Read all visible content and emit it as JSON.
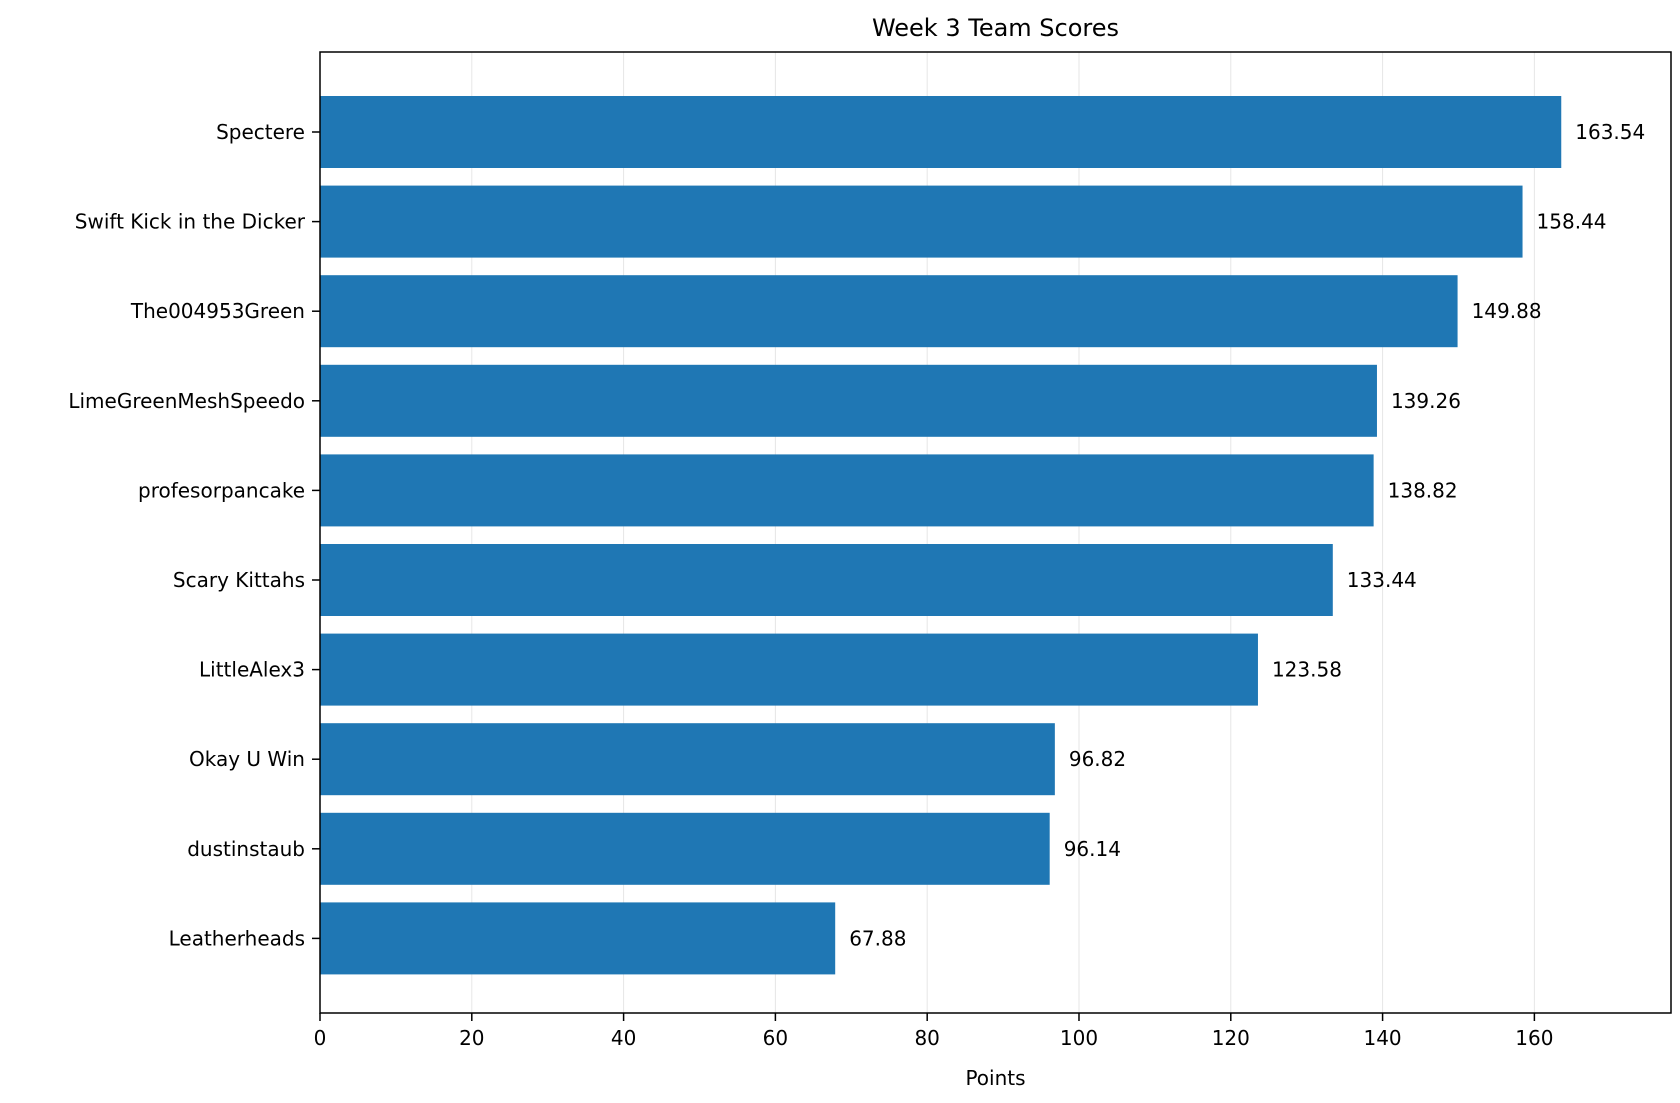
{
  "chart_data": {
    "type": "bar",
    "orientation": "horizontal",
    "title": "Week 3 Team Scores",
    "xlabel": "Points",
    "ylabel": "",
    "categories": [
      "Spectere",
      "Swift Kick in the Dicker",
      "The004953Green",
      "LimeGreenMeshSpeedo",
      "profesorpancake",
      "Scary Kittahs",
      "LittleAlex3",
      "Okay U Win",
      "dustinstaub",
      "Leatherheads"
    ],
    "values": [
      163.54,
      158.44,
      149.88,
      139.26,
      138.82,
      133.44,
      123.58,
      96.82,
      96.14,
      67.88
    ],
    "value_labels": [
      "163.54",
      "158.44",
      "149.88",
      "139.26",
      "138.82",
      "133.44",
      "123.58",
      "96.82",
      "96.14",
      "67.88"
    ],
    "xlim": [
      0,
      178
    ],
    "xticks": [
      0,
      20,
      40,
      60,
      80,
      100,
      120,
      140,
      160
    ],
    "grid": "vertical",
    "bar_color": "#1f77b4",
    "grid_color": "#e6e6e6"
  }
}
